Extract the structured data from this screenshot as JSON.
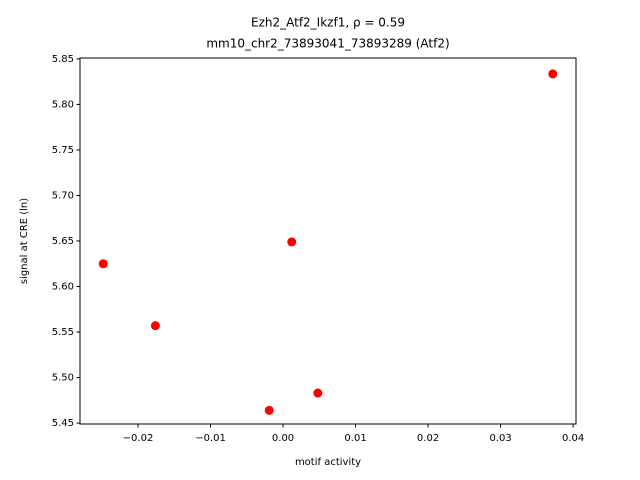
{
  "chart_data": {
    "type": "scatter",
    "title": "Ezh2_Atf2_Ikzf1, ρ = 0.59",
    "subtitle": "mm10_chr2_73893041_73893289 (Atf2)",
    "x_label": "motif activity",
    "y_label": "signal at CRE (ln)",
    "color": "#ff0000",
    "x": [
      0.0372,
      0.0012,
      -0.0248,
      -0.0176,
      0.0048,
      -0.0019
    ],
    "values": [
      5.8335,
      5.649,
      5.625,
      5.557,
      5.483,
      5.464
    ],
    "xlim": [
      -0.028,
      0.0404
    ],
    "ylim": [
      5.449,
      5.851
    ],
    "xticks": [
      {
        "value": -0.02,
        "label": "−0.02"
      },
      {
        "value": -0.01,
        "label": "−0.01"
      },
      {
        "value": 0,
        "label": "0.00"
      },
      0.01,
      0.02,
      0.03,
      0.04
    ],
    "yticks": [
      5.45,
      {
        "value": 5.5,
        "label": "5.50"
      },
      5.55,
      {
        "value": 5.6,
        "label": "5.60"
      },
      5.65,
      {
        "value": 5.7,
        "label": "5.70"
      },
      5.75,
      {
        "value": 5.8,
        "label": "5.80"
      },
      5.85
    ]
  }
}
